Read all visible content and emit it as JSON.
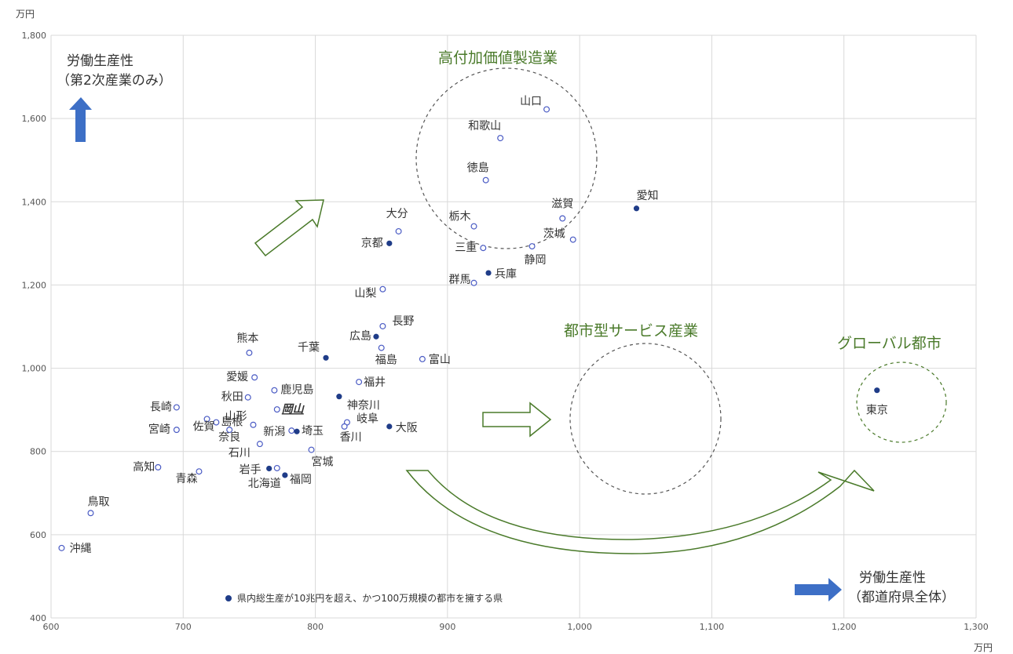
{
  "chart_data": {
    "type": "scatter",
    "title": "",
    "xlabel": "労働生産性（都道府県全体）",
    "ylabel": "労働生産性（第2次産業のみ）",
    "x_unit": "万円",
    "y_unit": "万円",
    "xlim": [
      600,
      1300
    ],
    "ylim": [
      400,
      1800
    ],
    "x_ticks": [
      "600",
      "700",
      "800",
      "900",
      "1,000",
      "1,100",
      "1,200",
      "1,300"
    ],
    "y_ticks": [
      "400",
      "600",
      "800",
      "1,000",
      "1,200",
      "1,400",
      "1,600",
      "1,800"
    ],
    "grid": true,
    "legend": "県内総生産が10兆円を超え、かつ100万規模の都市を擁する県",
    "points": [
      {
        "name": "山口",
        "x": 975,
        "y": 1622,
        "major": false
      },
      {
        "name": "和歌山",
        "x": 940,
        "y": 1553,
        "major": false
      },
      {
        "name": "徳島",
        "x": 929,
        "y": 1452,
        "major": false
      },
      {
        "name": "愛知",
        "x": 1043,
        "y": 1384,
        "major": true
      },
      {
        "name": "滋賀",
        "x": 987,
        "y": 1360,
        "major": false
      },
      {
        "name": "栃木",
        "x": 920,
        "y": 1341,
        "major": false
      },
      {
        "name": "大分",
        "x": 863,
        "y": 1329,
        "major": false
      },
      {
        "name": "茨城",
        "x": 995,
        "y": 1309,
        "major": false
      },
      {
        "name": "京都",
        "x": 856,
        "y": 1300,
        "major": true
      },
      {
        "name": "三重",
        "x": 927,
        "y": 1289,
        "major": false
      },
      {
        "name": "静岡",
        "x": 964,
        "y": 1293,
        "major": false
      },
      {
        "name": "兵庫",
        "x": 931,
        "y": 1229,
        "major": true
      },
      {
        "name": "群馬",
        "x": 920,
        "y": 1205,
        "major": false
      },
      {
        "name": "山梨",
        "x": 851,
        "y": 1190,
        "major": false
      },
      {
        "name": "長野",
        "x": 851,
        "y": 1101,
        "major": false
      },
      {
        "name": "広島",
        "x": 846,
        "y": 1076,
        "major": true
      },
      {
        "name": "福島",
        "x": 850,
        "y": 1049,
        "major": false
      },
      {
        "name": "千葉",
        "x": 808,
        "y": 1025,
        "major": true
      },
      {
        "name": "富山",
        "x": 881,
        "y": 1022,
        "major": false
      },
      {
        "name": "熊本",
        "x": 750,
        "y": 1037,
        "major": false
      },
      {
        "name": "愛媛",
        "x": 754,
        "y": 978,
        "major": false
      },
      {
        "name": "福井",
        "x": 833,
        "y": 967,
        "major": false
      },
      {
        "name": "鹿児島",
        "x": 769,
        "y": 947,
        "major": false
      },
      {
        "name": "神奈川",
        "x": 818,
        "y": 932,
        "major": true
      },
      {
        "name": "秋田",
        "x": 749,
        "y": 930,
        "major": false
      },
      {
        "name": "長崎",
        "x": 695,
        "y": 906,
        "major": false
      },
      {
        "name": "岡山",
        "x": 771,
        "y": 901,
        "major": false
      },
      {
        "name": "島根",
        "x": 725,
        "y": 870,
        "major": false
      },
      {
        "name": "山形",
        "x": 753,
        "y": 864,
        "major": false
      },
      {
        "name": "岐阜",
        "x": 824,
        "y": 870,
        "major": false
      },
      {
        "name": "大阪",
        "x": 856,
        "y": 860,
        "major": true
      },
      {
        "name": "宮崎",
        "x": 695,
        "y": 852,
        "major": false
      },
      {
        "name": "佐賀",
        "x": 718,
        "y": 878,
        "major": false
      },
      {
        "name": "奈良",
        "x": 735,
        "y": 852,
        "major": false
      },
      {
        "name": "新潟",
        "x": 782,
        "y": 850,
        "major": false
      },
      {
        "name": "埼玉",
        "x": 786,
        "y": 848,
        "major": true
      },
      {
        "name": "香川",
        "x": 822,
        "y": 860,
        "major": false
      },
      {
        "name": "石川",
        "x": 758,
        "y": 818,
        "major": false
      },
      {
        "name": "宮城",
        "x": 797,
        "y": 804,
        "major": false
      },
      {
        "name": "高知",
        "x": 681,
        "y": 762,
        "major": false
      },
      {
        "name": "青森",
        "x": 712,
        "y": 752,
        "major": false
      },
      {
        "name": "岩手",
        "x": 765,
        "y": 759,
        "major": true
      },
      {
        "name": "福岡",
        "x": 777,
        "y": 743,
        "major": true
      },
      {
        "name": "北海道",
        "x": 771,
        "y": 760,
        "major": false
      },
      {
        "name": "鳥取",
        "x": 630,
        "y": 652,
        "major": false
      },
      {
        "name": "沖縄",
        "x": 608,
        "y": 568,
        "major": false
      },
      {
        "name": "東京",
        "x": 1225,
        "y": 947,
        "major": true
      }
    ],
    "groups": [
      "高付加価値製造業",
      "都市型サービス産業",
      "グローバル都市"
    ]
  },
  "colors": {
    "marker_stroke": "#4a5bc4",
    "marker_fill_major": "#1f3c88",
    "arrow_blue": "#3d6fc6",
    "group_green": "#4a7a2a",
    "grid": "#d9d9d9"
  },
  "annotations": {
    "y_title_line1": "労働生産性",
    "y_title_line2": "（第2次産業のみ）",
    "x_title_line1": "労働生産性",
    "x_title_line2": "（都道府県全体）",
    "y_unit": "万円",
    "x_unit": "万円",
    "group_manufacturing": "高付加価値製造業",
    "group_service": "都市型サービス産業",
    "group_global": "グローバル都市",
    "legend_text": "県内総生産が10兆円を超え、かつ100万規模の都市を擁する県"
  }
}
